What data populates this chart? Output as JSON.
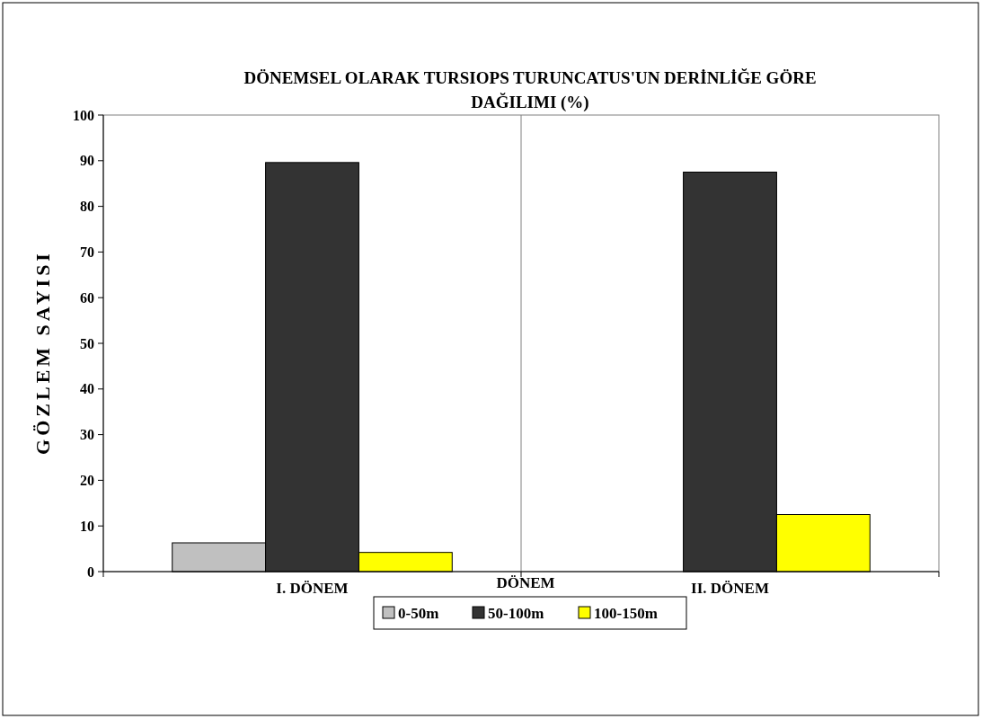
{
  "chart_data": {
    "type": "bar",
    "title": "DÖNEMSEL OLARAK TURSIOPS TURUNCATUS'UN DERİNLİĞE GÖRE DAĞILIMI (%)",
    "xlabel": "DÖNEM",
    "ylabel": "GÖZLEM SAYISI",
    "categories": [
      "I. DÖNEM",
      "II. DÖNEM"
    ],
    "series": [
      {
        "name": "0-50m",
        "color": "#c0c0c0",
        "values": [
          6.3,
          0
        ]
      },
      {
        "name": "50-100m",
        "color": "#333333",
        "values": [
          89.6,
          87.5
        ]
      },
      {
        "name": "100-150m",
        "color": "#ffff00",
        "values": [
          4.2,
          12.5
        ]
      }
    ],
    "ylim": [
      0,
      100
    ],
    "yticks": [
      0,
      10,
      20,
      30,
      40,
      50,
      60,
      70,
      80,
      90,
      100
    ],
    "grid": "x",
    "legend": "bottom"
  }
}
